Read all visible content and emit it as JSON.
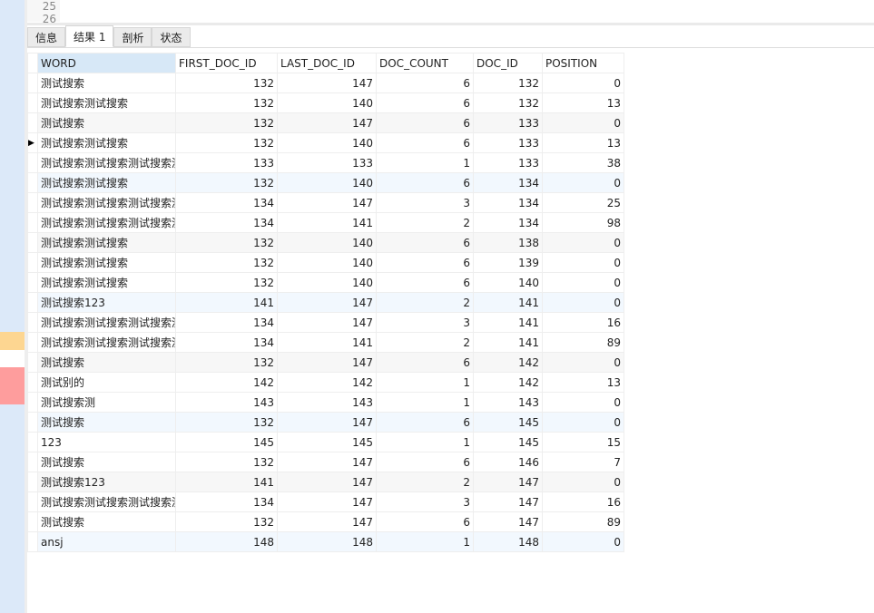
{
  "editor": {
    "line_numbers": [
      "25",
      "26"
    ]
  },
  "tabs": [
    "信息",
    "结果 1",
    "剖析",
    "状态"
  ],
  "active_tab": 1,
  "columns": [
    "WORD",
    "FIRST_DOC_ID",
    "LAST_DOC_ID",
    "DOC_COUNT",
    "DOC_ID",
    "POSITION"
  ],
  "current_row": 3,
  "rows": [
    [
      "测试搜索",
      "132",
      "147",
      "6",
      "132",
      "0"
    ],
    [
      "测试搜索测试搜索",
      "132",
      "140",
      "6",
      "132",
      "13"
    ],
    [
      "测试搜索",
      "132",
      "147",
      "6",
      "133",
      "0"
    ],
    [
      "测试搜索测试搜索",
      "132",
      "140",
      "6",
      "133",
      "13"
    ],
    [
      "测试搜索测试搜索测试搜索测",
      "133",
      "133",
      "1",
      "133",
      "38"
    ],
    [
      "测试搜索测试搜索",
      "132",
      "140",
      "6",
      "134",
      "0"
    ],
    [
      "测试搜索测试搜索测试搜索测",
      "134",
      "147",
      "3",
      "134",
      "25"
    ],
    [
      "测试搜索测试搜索测试搜索测",
      "134",
      "141",
      "2",
      "134",
      "98"
    ],
    [
      "测试搜索测试搜索",
      "132",
      "140",
      "6",
      "138",
      "0"
    ],
    [
      "测试搜索测试搜索",
      "132",
      "140",
      "6",
      "139",
      "0"
    ],
    [
      "测试搜索测试搜索",
      "132",
      "140",
      "6",
      "140",
      "0"
    ],
    [
      "测试搜索123",
      "141",
      "147",
      "2",
      "141",
      "0"
    ],
    [
      "测试搜索测试搜索测试搜索测",
      "134",
      "147",
      "3",
      "141",
      "16"
    ],
    [
      "测试搜索测试搜索测试搜索测",
      "134",
      "141",
      "2",
      "141",
      "89"
    ],
    [
      "测试搜索",
      "132",
      "147",
      "6",
      "142",
      "0"
    ],
    [
      "测试别的",
      "142",
      "142",
      "1",
      "142",
      "13"
    ],
    [
      "测试搜索测",
      "143",
      "143",
      "1",
      "143",
      "0"
    ],
    [
      "测试搜索",
      "132",
      "147",
      "6",
      "145",
      "0"
    ],
    [
      "123",
      "145",
      "145",
      "1",
      "145",
      "15"
    ],
    [
      "测试搜索",
      "132",
      "147",
      "6",
      "146",
      "7"
    ],
    [
      "测试搜索123",
      "141",
      "147",
      "2",
      "147",
      "0"
    ],
    [
      "测试搜索测试搜索测试搜索测",
      "134",
      "147",
      "3",
      "147",
      "16"
    ],
    [
      "测试搜索",
      "132",
      "147",
      "6",
      "147",
      "89"
    ],
    [
      "ansj",
      "148",
      "148",
      "1",
      "148",
      "0"
    ]
  ]
}
